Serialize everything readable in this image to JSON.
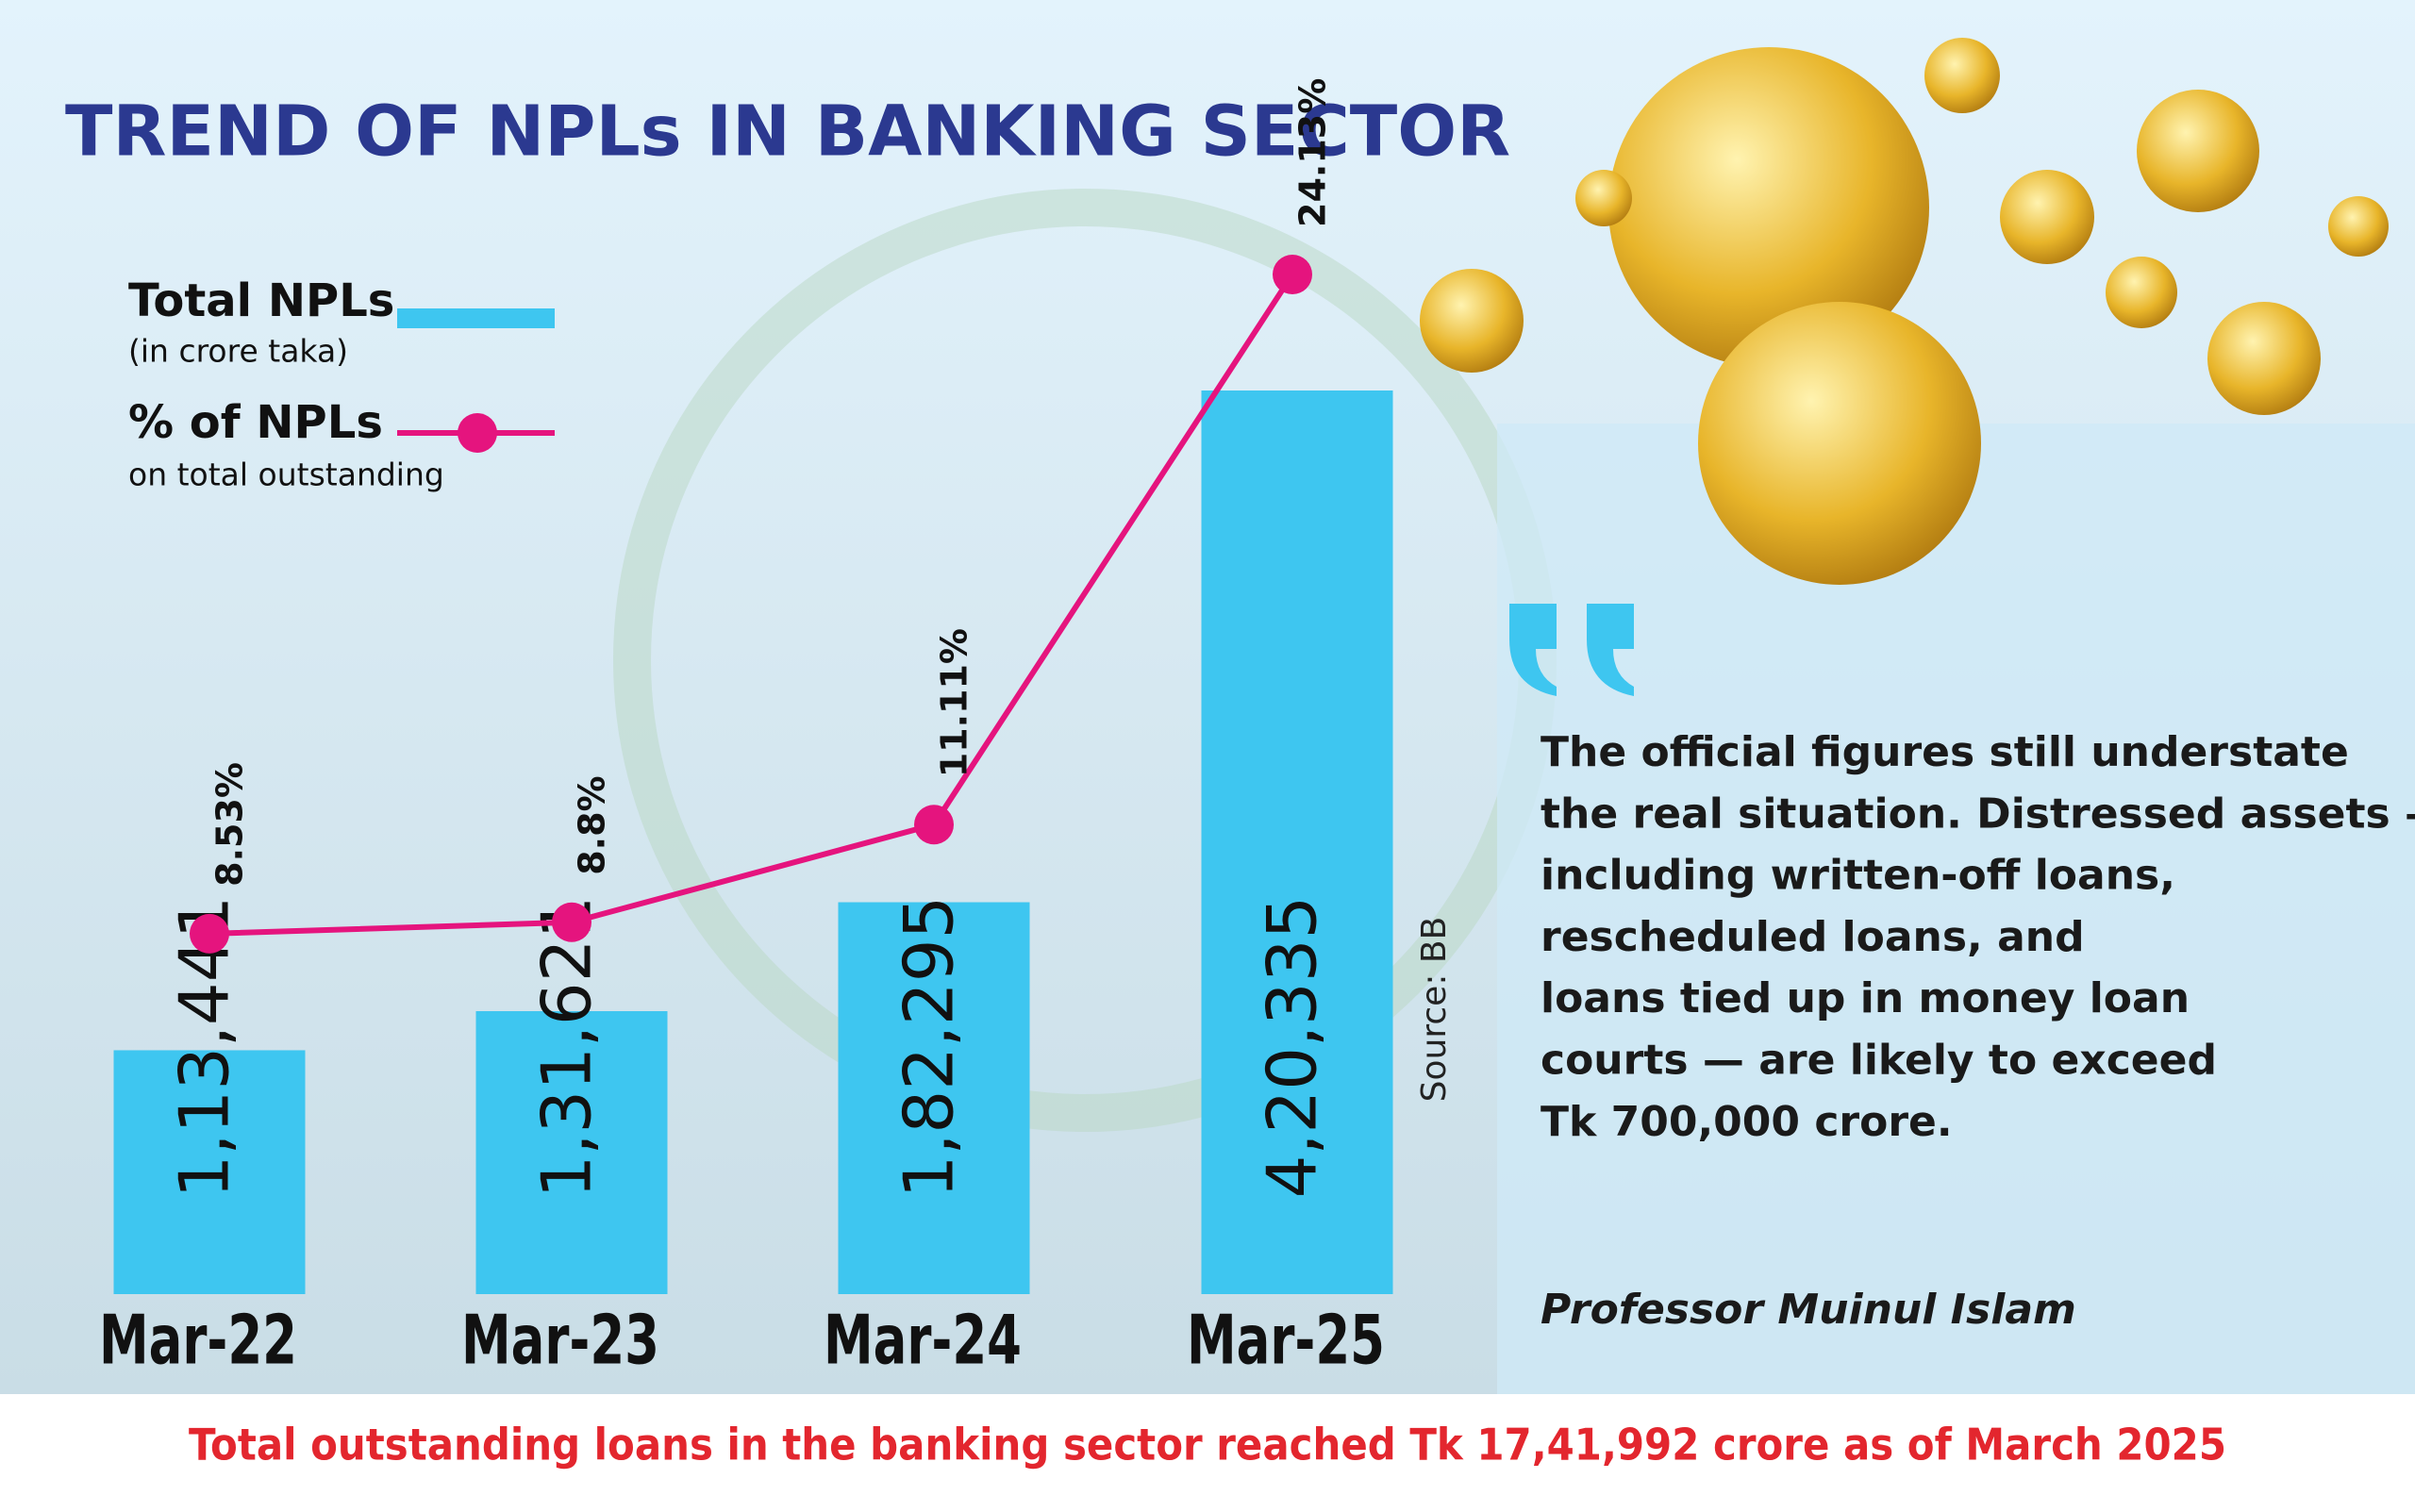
{
  "chart_data": {
    "type": "bar",
    "title": "TREND OF NPLs IN BANKING SECTOR",
    "categories": [
      "Mar-22",
      "Mar-23",
      "Mar-24",
      "Mar-25"
    ],
    "series": [
      {
        "name": "Total NPLs",
        "description": "(in crore taka)",
        "type": "bar",
        "color": "#3ec6f0",
        "values": [
          113441,
          131621,
          182295,
          420335
        ],
        "value_labels": [
          "1,13,441",
          "1,31,621",
          "1,82,295",
          "4,20,335"
        ]
      },
      {
        "name": "% of NPLs",
        "description": "on total outstanding",
        "type": "line",
        "axis": "y2",
        "color": "#e5147e",
        "values": [
          8.53,
          8.8,
          11.11,
          24.13
        ],
        "value_labels": [
          "8.53%",
          "8.8%",
          "11.11%",
          "24.13%"
        ]
      }
    ],
    "source": "Source: BB",
    "footnote": "Total outstanding loans in the banking sector reached Tk 17,41,992 crore as of March 2025"
  },
  "quote": {
    "lines": [
      "The official figures still understate",
      "the real situation. Distressed assets —",
      " including written-off loans,",
      "rescheduled loans, and",
      "loans tied up in money loan",
      " courts — are likely to exceed",
      "Tk 700,000 crore."
    ],
    "author": "Professor Muinul Islam"
  }
}
